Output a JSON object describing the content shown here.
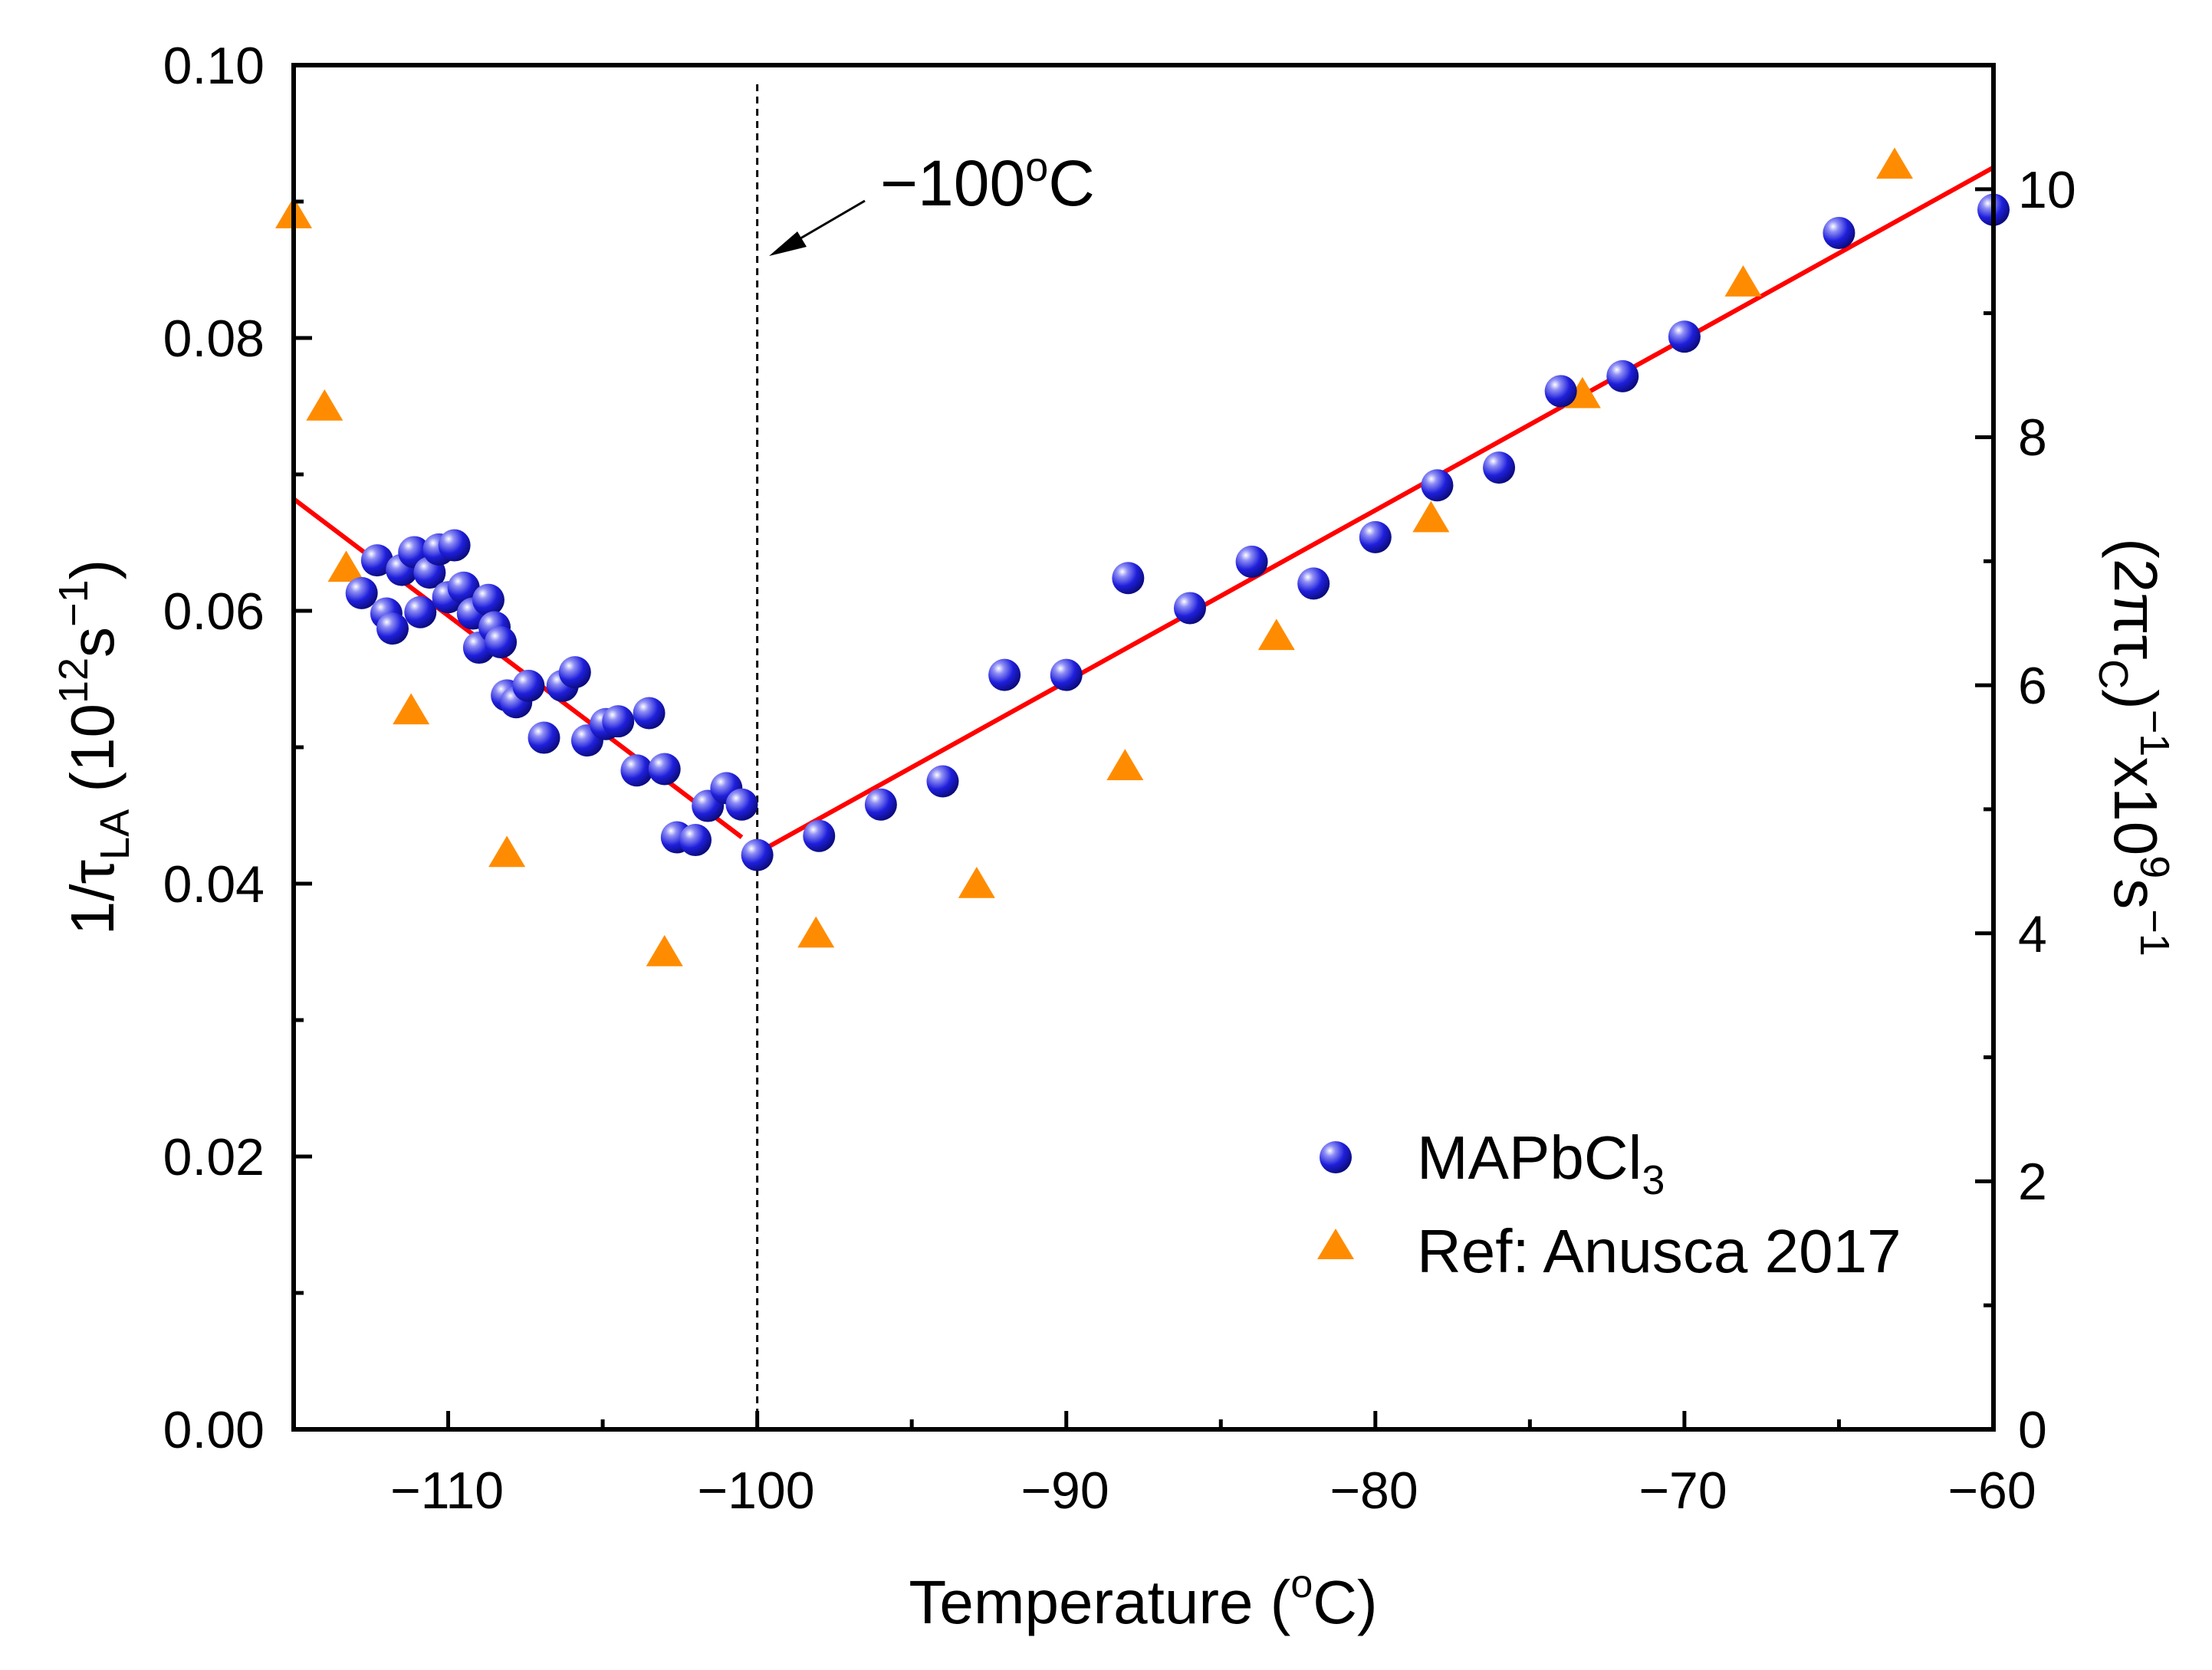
{
  "chart_data": {
    "type": "scatter",
    "x_axis": {
      "title_main": "Temperature (",
      "title_sup": "o",
      "title_end": "C)",
      "range": [
        -115,
        -60
      ],
      "ticks": [
        -110,
        -100,
        -90,
        -80,
        -70,
        -60
      ],
      "tick_labels": [
        "−110",
        "−100",
        "−90",
        "−80",
        "−70",
        "−60"
      ]
    },
    "y_axis_left": {
      "title_pre": "1/τ",
      "title_sub": "LA",
      "title_mid": " (10",
      "title_sup": "12",
      "title_s": "s",
      "title_sup2": "−1",
      "title_end": ")",
      "range": [
        0,
        0.1
      ],
      "ticks": [
        0,
        0.02,
        0.04,
        0.06,
        0.08,
        0.1
      ],
      "tick_labels": [
        "0.00",
        "0.02",
        "0.04",
        "0.06",
        "0.08",
        "0.10"
      ]
    },
    "y_axis_right": {
      "title_pre": "(2πτ",
      "title_sub": "C",
      "title_close": ")",
      "title_sup": "−1",
      "title_mid": "x10",
      "title_sup2": "9",
      "title_s": "s",
      "title_sup3": "−1",
      "range": [
        0,
        11
      ],
      "ticks": [
        0,
        2,
        4,
        6,
        8,
        10
      ],
      "tick_labels": [
        "0",
        "2",
        "4",
        "6",
        "8",
        "10"
      ]
    },
    "annotation": {
      "text_main": "−100",
      "text_sup": "o",
      "text_end": "C",
      "vline_x": -100
    },
    "series": [
      {
        "name": "MAPbCl3",
        "legend_main": "MAPbCl",
        "legend_sub": "3",
        "marker": "sphere",
        "color": "#1f1fdc",
        "points": [
          [
            -112.8,
            0.0613
          ],
          [
            -112.3,
            0.0637
          ],
          [
            -112.0,
            0.0598
          ],
          [
            -111.8,
            0.0587
          ],
          [
            -111.5,
            0.063
          ],
          [
            -111.1,
            0.0643
          ],
          [
            -110.9,
            0.0599
          ],
          [
            -110.6,
            0.0628
          ],
          [
            -110.3,
            0.0645
          ],
          [
            -110.0,
            0.061
          ],
          [
            -109.8,
            0.0648
          ],
          [
            -109.5,
            0.0617
          ],
          [
            -109.2,
            0.0598
          ],
          [
            -109.0,
            0.0573
          ],
          [
            -108.7,
            0.0608
          ],
          [
            -108.5,
            0.0588
          ],
          [
            -108.3,
            0.0577
          ],
          [
            -108.1,
            0.0538
          ],
          [
            -107.8,
            0.0533
          ],
          [
            -107.4,
            0.0545
          ],
          [
            -106.9,
            0.0507
          ],
          [
            -106.3,
            0.0545
          ],
          [
            -105.9,
            0.0555
          ],
          [
            -105.5,
            0.0505
          ],
          [
            -104.9,
            0.0517
          ],
          [
            -104.5,
            0.0519
          ],
          [
            -103.9,
            0.0483
          ],
          [
            -103.5,
            0.0525
          ],
          [
            -103.0,
            0.0484
          ],
          [
            -102.6,
            0.0434
          ],
          [
            -102.0,
            0.0432
          ],
          [
            -101.6,
            0.0457
          ],
          [
            -101.0,
            0.047
          ],
          [
            -100.5,
            0.0458
          ],
          [
            -100.0,
            0.0421
          ],
          [
            -98.0,
            0.0435
          ],
          [
            -96.0,
            0.0458
          ],
          [
            -94.0,
            0.0475
          ],
          [
            -92.0,
            0.0553
          ],
          [
            -90.0,
            0.0553
          ],
          [
            -88.0,
            0.0624
          ],
          [
            -86.0,
            0.0602
          ],
          [
            -84.0,
            0.0636
          ],
          [
            -82.0,
            0.062
          ],
          [
            -80.0,
            0.0654
          ],
          [
            -78.0,
            0.0692
          ],
          [
            -76.0,
            0.0705
          ],
          [
            -74.0,
            0.0761
          ],
          [
            -72.0,
            0.0772
          ],
          [
            -70.0,
            0.0801
          ],
          [
            -65.0,
            0.0877
          ],
          [
            -60.0,
            0.0894
          ]
        ]
      },
      {
        "name": "Ref: Anusca 2017",
        "legend_main": "Ref: Anusca 2017",
        "marker": "triangle",
        "color": "#ff8c00",
        "points_right_axis": [
          [
            -115.0,
            9.8
          ],
          [
            -114.0,
            8.25
          ],
          [
            -113.3,
            6.95
          ],
          [
            -111.2,
            5.8
          ],
          [
            -108.1,
            4.65
          ],
          [
            -103.0,
            3.85
          ],
          [
            -98.1,
            4.0
          ],
          [
            -92.9,
            4.4
          ],
          [
            -88.1,
            5.35
          ],
          [
            -83.2,
            6.4
          ],
          [
            -78.2,
            7.35
          ],
          [
            -73.3,
            8.35
          ],
          [
            -68.1,
            9.25
          ],
          [
            -63.2,
            10.2
          ]
        ]
      }
    ],
    "fit_lines": [
      {
        "name": "fit-left",
        "color": "#ff0000",
        "points": [
          [
            -115,
            0.0682
          ],
          [
            -100.5,
            0.0434
          ]
        ]
      },
      {
        "name": "fit-right",
        "color": "#ff0000",
        "points": [
          [
            -99.8,
            0.0425
          ],
          [
            -60,
            0.0925
          ]
        ]
      }
    ]
  }
}
